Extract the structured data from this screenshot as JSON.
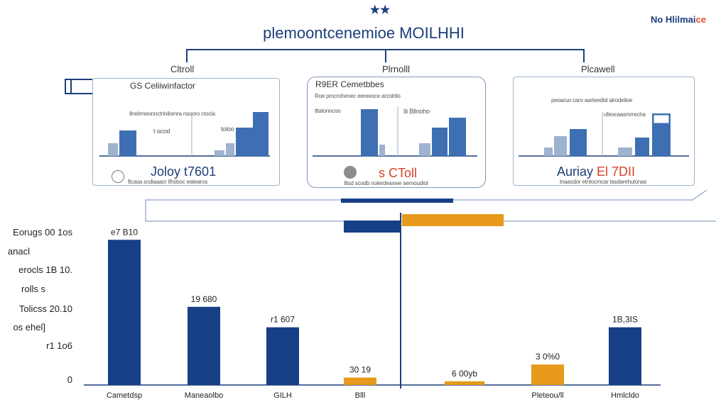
{
  "header": {
    "stars": "★★",
    "title": "plemoontcenemioe MOILHHI",
    "corner_brand_main": "No Hlilmai",
    "corner_brand_accent": "ce"
  },
  "panels": [
    {
      "tab": "Cltroll",
      "heading": "GS Celiiwinfactor",
      "caption": "llnelrmeonnctrinilomra  nsooro ctocla",
      "note": "t ocod",
      "note2": "toloo",
      "label_main": "Joloy",
      "label_accent": "",
      "label_tail": " t7601",
      "footer": "ftcasa scdiaaacr Ilhdsoc eatearos"
    },
    {
      "tab": "Plrnolll",
      "heading": "R9ER Cemetbbes",
      "caption": "Roe pmcrohenec eereeoce arzotrilo",
      "note": "tltalonncoo",
      "note2": "Ili Bllnoho",
      "label_main": "",
      "label_accent": "s CToll",
      "label_tail": "",
      "footer": "Iltsd scodb nolerdeaxwe aemoudiol"
    },
    {
      "tab": "Plcawell",
      "heading": "",
      "caption": "peoaruo caro aarteedlsl alrodeiloe",
      "note": "",
      "note2": "ufeocaasmrrecha",
      "label_main": "Auriay",
      "label_accent": " El 7DII",
      "label_tail": "",
      "footer": "tnaasdor etnlocmcar lasdarehulonas"
    }
  ],
  "left_axis_text": [
    "Eorugs 00 1os",
    "anacl",
    "erocls 1B 10.",
    "rolls s",
    "Tolicss 20.10",
    "os ehel]",
    "r1 1o6",
    "0"
  ],
  "colors": {
    "navy": "#163f86",
    "orange": "#e79a1c",
    "frame": "#1d3f7a",
    "panel_border": "#9fb2cf"
  },
  "chart_data": {
    "type": "bar",
    "categories": [
      "Cametdsp",
      "Maneaolbo",
      "GILH",
      "Blll",
      "",
      "Pleteou/ll",
      "Hmlcldo"
    ],
    "values": [
      78,
      42,
      31,
      4,
      2,
      11,
      31
    ],
    "colors": [
      "#163f86",
      "#163f86",
      "#163f86",
      "#e79a1c",
      "#e79a1c",
      "#e79a1c",
      "#163f86"
    ],
    "data_labels": [
      "e7 B10",
      "19 680",
      "r1 607",
      "30 19",
      "6 00yb",
      "3 0%0",
      "1B,3IS"
    ],
    "ylim": [
      0,
      80
    ],
    "title": "",
    "xlabel": "",
    "ylabel": ""
  }
}
